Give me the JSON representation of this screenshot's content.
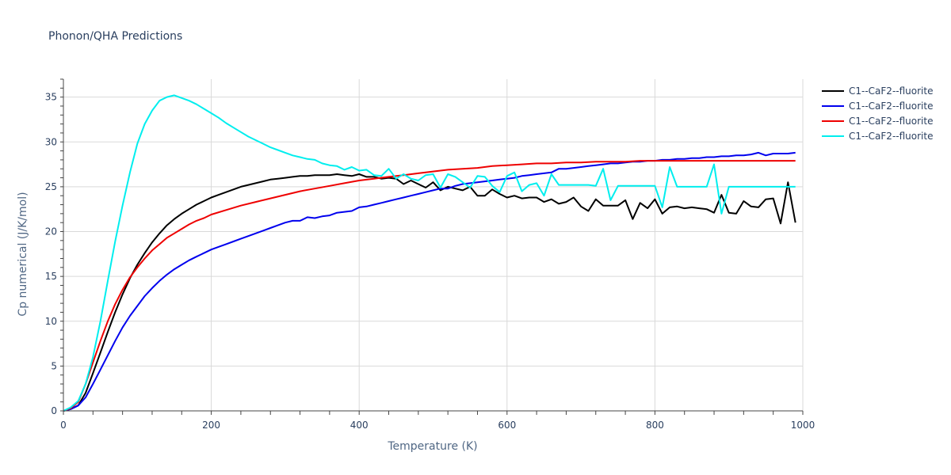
{
  "chart_data": {
    "type": "line",
    "title": "Phonon/QHA Predictions",
    "xlabel": "Temperature (K)",
    "ylabel": "Cp numerical (J/K/mol)",
    "xlim": [
      0,
      1000
    ],
    "ylim": [
      0,
      37
    ],
    "xticks": [
      0,
      200,
      400,
      600,
      800,
      1000
    ],
    "yticks": [
      0,
      5,
      10,
      15,
      20,
      25,
      30,
      35
    ],
    "grid": true,
    "legend_position": "top-right",
    "series": [
      {
        "name": "C1--CaF2--fluorite",
        "color": "#000000",
        "x": [
          0,
          10,
          20,
          30,
          40,
          50,
          60,
          70,
          80,
          90,
          100,
          110,
          120,
          130,
          140,
          150,
          160,
          170,
          180,
          190,
          200,
          210,
          220,
          230,
          240,
          250,
          260,
          270,
          280,
          290,
          300,
          310,
          320,
          330,
          340,
          350,
          360,
          370,
          380,
          390,
          400,
          410,
          420,
          430,
          440,
          450,
          460,
          470,
          480,
          490,
          500,
          510,
          520,
          530,
          540,
          550,
          560,
          570,
          580,
          590,
          600,
          610,
          620,
          630,
          640,
          650,
          660,
          670,
          680,
          690,
          700,
          710,
          720,
          730,
          740,
          750,
          760,
          770,
          780,
          790,
          800,
          810,
          820,
          830,
          840,
          850,
          860,
          870,
          880,
          890,
          900,
          910,
          920,
          930,
          940,
          950,
          960,
          970,
          980,
          990
        ],
        "y": [
          0,
          0.2,
          0.6,
          2.0,
          4.2,
          6.5,
          8.8,
          11.0,
          13.0,
          14.8,
          16.3,
          17.6,
          18.8,
          19.8,
          20.7,
          21.4,
          22.0,
          22.5,
          23.0,
          23.4,
          23.8,
          24.1,
          24.4,
          24.7,
          25.0,
          25.2,
          25.4,
          25.6,
          25.8,
          25.9,
          26.0,
          26.1,
          26.2,
          26.2,
          26.3,
          26.3,
          26.3,
          26.4,
          26.3,
          26.2,
          26.4,
          26.1,
          26.1,
          25.9,
          26.0,
          25.9,
          25.3,
          25.7,
          25.3,
          24.9,
          25.5,
          24.6,
          25.0,
          24.8,
          24.6,
          25.0,
          24.0,
          24.0,
          24.7,
          24.2,
          23.8,
          24.0,
          23.7,
          23.8,
          23.8,
          23.3,
          23.6,
          23.1,
          23.3,
          23.8,
          22.8,
          22.3,
          23.6,
          22.9,
          22.9,
          22.9,
          23.5,
          21.4,
          23.2,
          22.6,
          23.6,
          22.0,
          22.7,
          22.8,
          22.6,
          22.7,
          22.6,
          22.5,
          22.1,
          24.1,
          22.1,
          22.0,
          23.4,
          22.8,
          22.7,
          23.6,
          23.7,
          20.9,
          25.5,
          21.0
        ]
      },
      {
        "name": "C1--CaF2--fluorite",
        "color": "#0000ee",
        "x": [
          0,
          10,
          20,
          30,
          40,
          50,
          60,
          70,
          80,
          90,
          100,
          110,
          120,
          130,
          140,
          150,
          160,
          170,
          180,
          190,
          200,
          210,
          220,
          230,
          240,
          250,
          260,
          270,
          280,
          290,
          300,
          310,
          320,
          330,
          340,
          350,
          360,
          370,
          380,
          390,
          400,
          410,
          420,
          430,
          440,
          450,
          460,
          470,
          480,
          490,
          500,
          510,
          520,
          530,
          540,
          550,
          560,
          570,
          580,
          590,
          600,
          610,
          620,
          630,
          640,
          650,
          660,
          670,
          680,
          690,
          700,
          710,
          720,
          730,
          740,
          750,
          760,
          770,
          780,
          790,
          800,
          810,
          820,
          830,
          840,
          850,
          860,
          870,
          880,
          890,
          900,
          910,
          920,
          930,
          940,
          950,
          960,
          970,
          980,
          990
        ],
        "y": [
          0,
          0.2,
          0.6,
          1.5,
          3.0,
          4.6,
          6.2,
          7.8,
          9.3,
          10.6,
          11.7,
          12.8,
          13.7,
          14.5,
          15.2,
          15.8,
          16.3,
          16.8,
          17.2,
          17.6,
          18.0,
          18.3,
          18.6,
          18.9,
          19.2,
          19.5,
          19.8,
          20.1,
          20.4,
          20.7,
          21.0,
          21.2,
          21.2,
          21.6,
          21.5,
          21.7,
          21.8,
          22.1,
          22.2,
          22.3,
          22.7,
          22.8,
          23.0,
          23.2,
          23.4,
          23.6,
          23.8,
          24.0,
          24.2,
          24.4,
          24.6,
          24.8,
          24.8,
          25.1,
          25.3,
          25.4,
          25.5,
          25.6,
          25.7,
          25.8,
          25.9,
          26.0,
          26.2,
          26.3,
          26.4,
          26.5,
          26.6,
          27.0,
          27.0,
          27.1,
          27.2,
          27.3,
          27.4,
          27.5,
          27.6,
          27.6,
          27.7,
          27.8,
          27.8,
          27.9,
          27.9,
          28.0,
          28.0,
          28.1,
          28.1,
          28.2,
          28.2,
          28.3,
          28.3,
          28.4,
          28.4,
          28.5,
          28.5,
          28.6,
          28.8,
          28.5,
          28.7,
          28.7,
          28.7,
          28.8
        ]
      },
      {
        "name": "C1--CaF2--fluorite",
        "color": "#ee0000",
        "x": [
          0,
          10,
          20,
          30,
          40,
          50,
          60,
          70,
          80,
          90,
          100,
          110,
          120,
          130,
          140,
          150,
          160,
          170,
          180,
          190,
          200,
          220,
          240,
          260,
          280,
          300,
          320,
          340,
          360,
          380,
          400,
          420,
          440,
          460,
          480,
          500,
          520,
          540,
          560,
          580,
          600,
          620,
          640,
          660,
          680,
          700,
          720,
          740,
          760,
          780,
          800,
          820,
          840,
          860,
          880,
          900,
          920,
          940,
          960,
          980,
          990
        ],
        "y": [
          0,
          0.3,
          1.0,
          3.0,
          5.4,
          7.8,
          10.0,
          11.9,
          13.5,
          14.9,
          16.0,
          17.0,
          17.9,
          18.6,
          19.3,
          19.8,
          20.3,
          20.8,
          21.2,
          21.5,
          21.9,
          22.4,
          22.9,
          23.3,
          23.7,
          24.1,
          24.5,
          24.8,
          25.1,
          25.4,
          25.7,
          25.9,
          26.1,
          26.3,
          26.5,
          26.7,
          26.9,
          27.0,
          27.1,
          27.3,
          27.4,
          27.5,
          27.6,
          27.6,
          27.7,
          27.7,
          27.8,
          27.8,
          27.8,
          27.9,
          27.9,
          27.9,
          27.9,
          27.9,
          27.9,
          27.9,
          27.9,
          27.9,
          27.9,
          27.9,
          27.9
        ]
      },
      {
        "name": "C1--CaF2--fluorite",
        "color": "#00eeee",
        "x": [
          0,
          10,
          20,
          30,
          40,
          50,
          60,
          70,
          80,
          90,
          100,
          110,
          120,
          130,
          140,
          150,
          160,
          170,
          180,
          190,
          200,
          210,
          220,
          230,
          240,
          250,
          260,
          270,
          280,
          290,
          300,
          310,
          320,
          330,
          340,
          350,
          360,
          370,
          380,
          390,
          400,
          410,
          420,
          430,
          440,
          450,
          460,
          470,
          480,
          490,
          500,
          510,
          520,
          530,
          540,
          550,
          560,
          570,
          580,
          590,
          600,
          610,
          620,
          630,
          640,
          650,
          660,
          670,
          680,
          690,
          700,
          710,
          720,
          730,
          740,
          750,
          760,
          770,
          780,
          790,
          800,
          810,
          820,
          830,
          840,
          850,
          860,
          870,
          880,
          890,
          900,
          910,
          920,
          930,
          940,
          950,
          960,
          970,
          980,
          990
        ],
        "y": [
          0,
          0.4,
          1.1,
          3.0,
          6.0,
          10.0,
          14.5,
          18.9,
          22.9,
          26.6,
          29.8,
          32.0,
          33.5,
          34.6,
          35.0,
          35.2,
          34.9,
          34.6,
          34.2,
          33.7,
          33.2,
          32.7,
          32.1,
          31.6,
          31.1,
          30.6,
          30.2,
          29.8,
          29.4,
          29.1,
          28.8,
          28.5,
          28.3,
          28.1,
          28.0,
          27.6,
          27.4,
          27.3,
          26.9,
          27.2,
          26.8,
          26.9,
          26.3,
          26.2,
          27.0,
          25.9,
          26.4,
          25.9,
          25.7,
          26.3,
          26.4,
          24.9,
          26.4,
          26.1,
          25.5,
          24.9,
          26.2,
          26.1,
          25.1,
          24.4,
          26.2,
          26.6,
          24.5,
          25.2,
          25.4,
          24.0,
          26.4,
          25.2,
          25.2,
          25.2,
          25.2,
          25.2,
          25.1,
          27.0,
          23.5,
          25.1,
          25.1,
          25.1,
          25.1,
          25.1,
          25.1,
          22.7,
          27.2,
          25.0,
          25.0,
          25.0,
          25.0,
          25.0,
          27.5,
          22.0,
          25.0,
          25.0,
          25.0,
          25.0,
          25.0,
          25.0,
          25.0,
          25.0,
          25.0,
          25.0
        ]
      }
    ]
  }
}
